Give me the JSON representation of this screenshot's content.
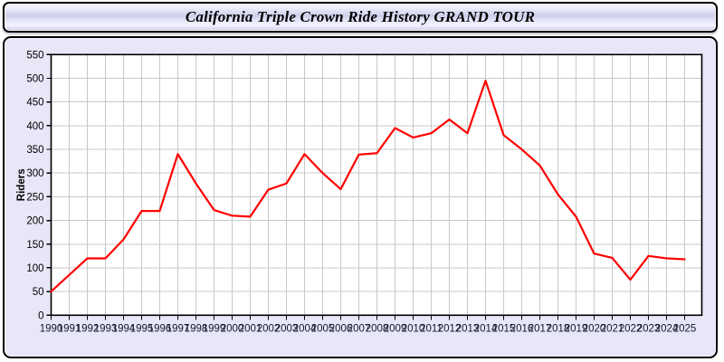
{
  "banner": {
    "title": "California Triple Crown Ride History GRAND TOUR"
  },
  "chart_data": {
    "type": "line",
    "title": "California Triple Crown Ride History GRAND TOUR",
    "x": [
      1990,
      1991,
      1992,
      1993,
      1994,
      1995,
      1996,
      1997,
      1998,
      1999,
      2000,
      2001,
      2002,
      2003,
      2004,
      2005,
      2006,
      2007,
      2008,
      2009,
      2010,
      2011,
      2012,
      2013,
      2014,
      2015,
      2016,
      2017,
      2018,
      2019,
      2020,
      2021,
      2022,
      2023,
      2024,
      2025
    ],
    "series": [
      {
        "name": "Riders",
        "color": "#fe0000",
        "values": [
          50,
          85,
          120,
          120,
          160,
          220,
          220,
          340,
          278,
          222,
          210,
          208,
          265,
          278,
          340,
          300,
          266,
          339,
          342,
          395,
          375,
          384,
          413,
          384,
          495,
          380,
          350,
          316,
          255,
          208,
          130,
          121,
          75,
          125,
          120,
          118
        ]
      }
    ],
    "xlabel": "",
    "ylabel": "Riders",
    "ylim": [
      0,
      550
    ],
    "ytick_step": 50,
    "grid": true,
    "legend": "none",
    "colors": {
      "line": "#fe0000",
      "plot_background": "#ffffff",
      "panel_background": "#e7e7f8",
      "gridline": "#c9c9c9",
      "axis": "#000000",
      "x_tick_label": "#15152d",
      "y_tick_label": "#000000"
    }
  }
}
